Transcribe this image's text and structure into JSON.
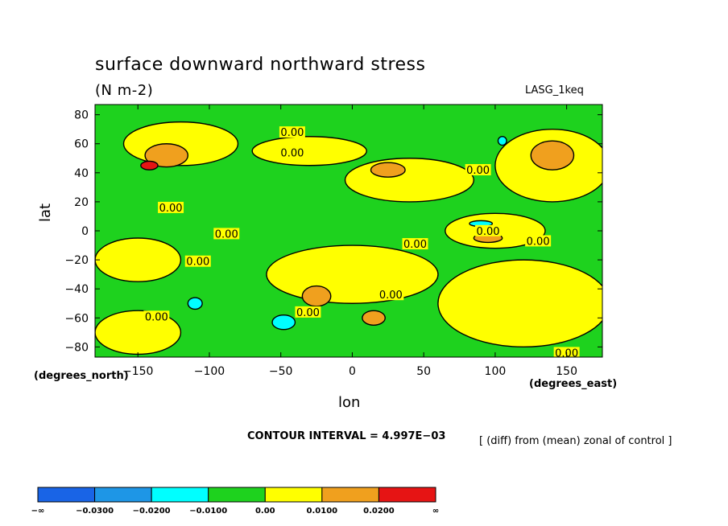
{
  "chart_data": {
    "type": "heatmap",
    "title": "surface downward northward stress",
    "units": "(N m-2)",
    "model_label": "LASG_1keq",
    "xlabel": "lon",
    "ylabel": "lat",
    "x_units_label": "(degrees_east)",
    "y_units_label": "(degrees_north)",
    "xlim": [
      -180,
      175
    ],
    "ylim": [
      -87,
      87
    ],
    "x_ticks": [
      -150,
      -100,
      -50,
      0,
      50,
      100,
      150
    ],
    "x_tick_labels": [
      "−150",
      "−100",
      "−50",
      "0",
      "50",
      "100",
      "150"
    ],
    "y_ticks": [
      80,
      60,
      40,
      20,
      0,
      -20,
      -40,
      -60,
      -80
    ],
    "y_tick_labels": [
      "80",
      "60",
      "40",
      "20",
      "0",
      "−20",
      "−40",
      "−60",
      "−80"
    ],
    "contour_interval_text": "CONTOUR INTERVAL = 4.997E−03",
    "diff_text": "[ (diff) from (mean) zonal of control ]",
    "contour_labels": [
      {
        "text": "0.00",
        "lon": -42,
        "lat": 67
      },
      {
        "text": "0.00",
        "lon": -42,
        "lat": 53
      },
      {
        "text": "0.00",
        "lon": -127,
        "lat": 15
      },
      {
        "text": "0.00",
        "lon": -88,
        "lat": -3
      },
      {
        "text": "0.00",
        "lon": -108,
        "lat": -22
      },
      {
        "text": "0.00",
        "lon": 88,
        "lat": 41
      },
      {
        "text": "0.00",
        "lon": 95,
        "lat": -1
      },
      {
        "text": "0.00",
        "lon": 44,
        "lat": -10
      },
      {
        "text": "0.00",
        "lon": 130,
        "lat": -8
      },
      {
        "text": "0.00",
        "lon": 27,
        "lat": -45
      },
      {
        "text": "0.00",
        "lon": -31,
        "lat": -57
      },
      {
        "text": "0.00",
        "lon": -137,
        "lat": -60
      },
      {
        "text": "0.00",
        "lon": 150,
        "lat": -85
      }
    ],
    "levels": [
      {
        "label": "−∞",
        "color": "#1964e6"
      },
      {
        "label": "−0.0300",
        "color": "#1e96e6"
      },
      {
        "label": "−0.0200",
        "color": "#00ffff"
      },
      {
        "label": "−0.0100",
        "color": "#1ed21e"
      },
      {
        "label": "0.00",
        "color": "#ffff00"
      },
      {
        "label": "0.0100",
        "color": "#f0a01e"
      },
      {
        "label": "0.0200",
        "color": "#e61414"
      },
      {
        "label": "∞",
        "color": ""
      }
    ],
    "regions": [
      {
        "level": "yellow",
        "lon": -120,
        "lat": 60,
        "rx": 40,
        "ry": 15
      },
      {
        "level": "yellow",
        "lon": -30,
        "lat": 55,
        "rx": 40,
        "ry": 10
      },
      {
        "level": "yellow",
        "lon": 40,
        "lat": 35,
        "rx": 45,
        "ry": 15
      },
      {
        "level": "yellow",
        "lon": 140,
        "lat": 45,
        "rx": 40,
        "ry": 25
      },
      {
        "level": "yellow",
        "lon": 100,
        "lat": 0,
        "rx": 35,
        "ry": 12
      },
      {
        "level": "yellow",
        "lon": 0,
        "lat": -30,
        "rx": 60,
        "ry": 20
      },
      {
        "level": "yellow",
        "lon": -150,
        "lat": -20,
        "rx": 30,
        "ry": 15
      },
      {
        "level": "yellow",
        "lon": 120,
        "lat": -50,
        "rx": 60,
        "ry": 30
      },
      {
        "level": "yellow",
        "lon": -150,
        "lat": -70,
        "rx": 30,
        "ry": 15
      },
      {
        "level": "orange",
        "lon": -130,
        "lat": 52,
        "rx": 15,
        "ry": 8
      },
      {
        "level": "orange",
        "lon": 25,
        "lat": 42,
        "rx": 12,
        "ry": 5
      },
      {
        "level": "orange",
        "lon": 140,
        "lat": 52,
        "rx": 15,
        "ry": 10
      },
      {
        "level": "orange",
        "lon": 95,
        "lat": -5,
        "rx": 10,
        "ry": 3
      },
      {
        "level": "orange",
        "lon": -25,
        "lat": -45,
        "rx": 10,
        "ry": 7
      },
      {
        "level": "orange",
        "lon": 15,
        "lat": -60,
        "rx": 8,
        "ry": 5
      },
      {
        "level": "red",
        "lon": -142,
        "lat": 45,
        "rx": 6,
        "ry": 3
      },
      {
        "level": "cyan",
        "lon": -110,
        "lat": -50,
        "rx": 5,
        "ry": 4
      },
      {
        "level": "cyan",
        "lon": -48,
        "lat": -63,
        "rx": 8,
        "ry": 5
      },
      {
        "level": "cyan",
        "lon": 90,
        "lat": 5,
        "rx": 8,
        "ry": 2
      },
      {
        "level": "cyan",
        "lon": 105,
        "lat": 62,
        "rx": 3,
        "ry": 3
      }
    ]
  }
}
